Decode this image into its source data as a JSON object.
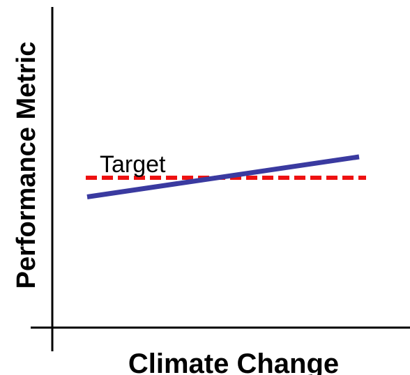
{
  "chart_data": {
    "type": "line",
    "xlabel": "Climate Change",
    "ylabel": "Performance Metric",
    "xlim": [
      0,
      100
    ],
    "ylim": [
      0,
      100
    ],
    "grid": false,
    "legend": "none",
    "series": [
      {
        "x": [
          0,
          100
        ],
        "values": [
          39,
          62
        ],
        "color": "#3a3aa0",
        "style": "solid"
      }
    ],
    "reference_lines": [
      {
        "label": "Target",
        "y": 50,
        "x": [
          0,
          100
        ],
        "color": "#ee1111",
        "style": "dashed"
      }
    ]
  }
}
